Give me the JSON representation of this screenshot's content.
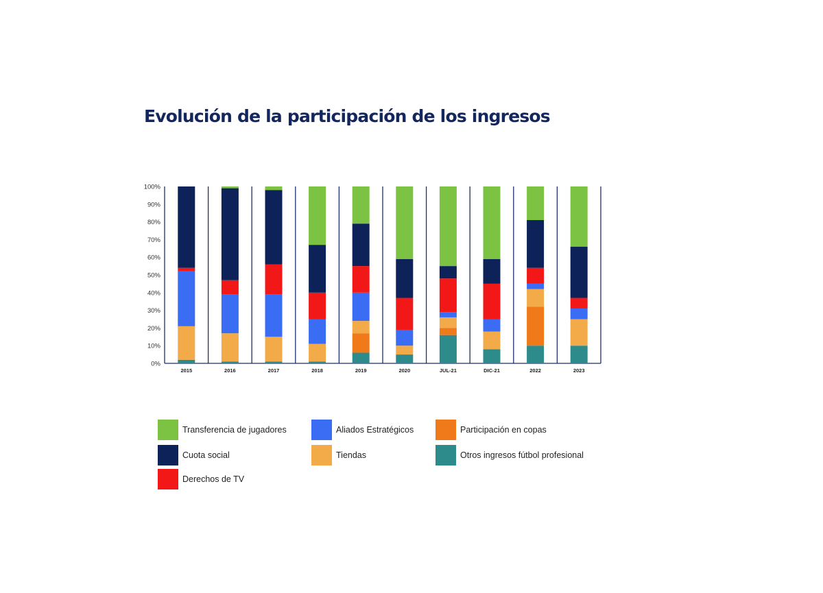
{
  "title": "Evolución de la participación de los ingresos",
  "chart_data": {
    "type": "bar",
    "stacked": true,
    "categories": [
      "2015",
      "2016",
      "2017",
      "2018",
      "2019",
      "2020",
      "JUL-21",
      "DIC-21",
      "2022",
      "2023"
    ],
    "ylim": [
      0,
      100
    ],
    "yticks": [
      "0%",
      "10%",
      "20%",
      "30%",
      "40%",
      "50%",
      "60%",
      "70%",
      "80%",
      "90%",
      "100%"
    ],
    "grid": false,
    "legend_position": "bottom",
    "series": [
      {
        "name": "Otros ingresos fútbol profesional",
        "color": "#2e8b8b",
        "values": [
          2,
          1,
          1,
          1,
          6,
          5,
          16,
          8,
          10,
          10
        ]
      },
      {
        "name": "Participación en copas",
        "color": "#f07a1a",
        "values": [
          0,
          0,
          0,
          0,
          11,
          0,
          4,
          0,
          22,
          0
        ]
      },
      {
        "name": "Tiendas",
        "color": "#f2ab48",
        "values": [
          19,
          16,
          14,
          10,
          7,
          5,
          6,
          10,
          10,
          15
        ]
      },
      {
        "name": "Aliados Estratégicos",
        "color": "#3a6cf4",
        "values": [
          31,
          22,
          24,
          14,
          16,
          9,
          3,
          7,
          3,
          6
        ]
      },
      {
        "name": "Derechos de TV",
        "color": "#f21818",
        "values": [
          2,
          8,
          17,
          15,
          15,
          18,
          19,
          20,
          9,
          6
        ]
      },
      {
        "name": "Cuota social",
        "color": "#0d2258",
        "values": [
          46,
          52,
          42,
          27,
          24,
          22,
          7,
          14,
          27,
          29
        ]
      },
      {
        "name": "Transferencia de jugadores",
        "color": "#7cc243",
        "values": [
          0,
          1,
          2,
          33,
          21,
          41,
          45,
          41,
          19,
          34
        ]
      }
    ]
  },
  "legend": [
    {
      "label": "Transferencia de jugadores",
      "color": "#7cc243"
    },
    {
      "label": "Aliados Estratégicos",
      "color": "#3a6cf4"
    },
    {
      "label": "Participación en copas",
      "color": "#f07a1a"
    },
    {
      "label": "Cuota social",
      "color": "#0d2258"
    },
    {
      "label": "Tiendas",
      "color": "#f2ab48"
    },
    {
      "label": "Otros ingresos fútbol profesional",
      "color": "#2e8b8b"
    },
    {
      "label": "Derechos de TV",
      "color": "#f21818"
    }
  ]
}
